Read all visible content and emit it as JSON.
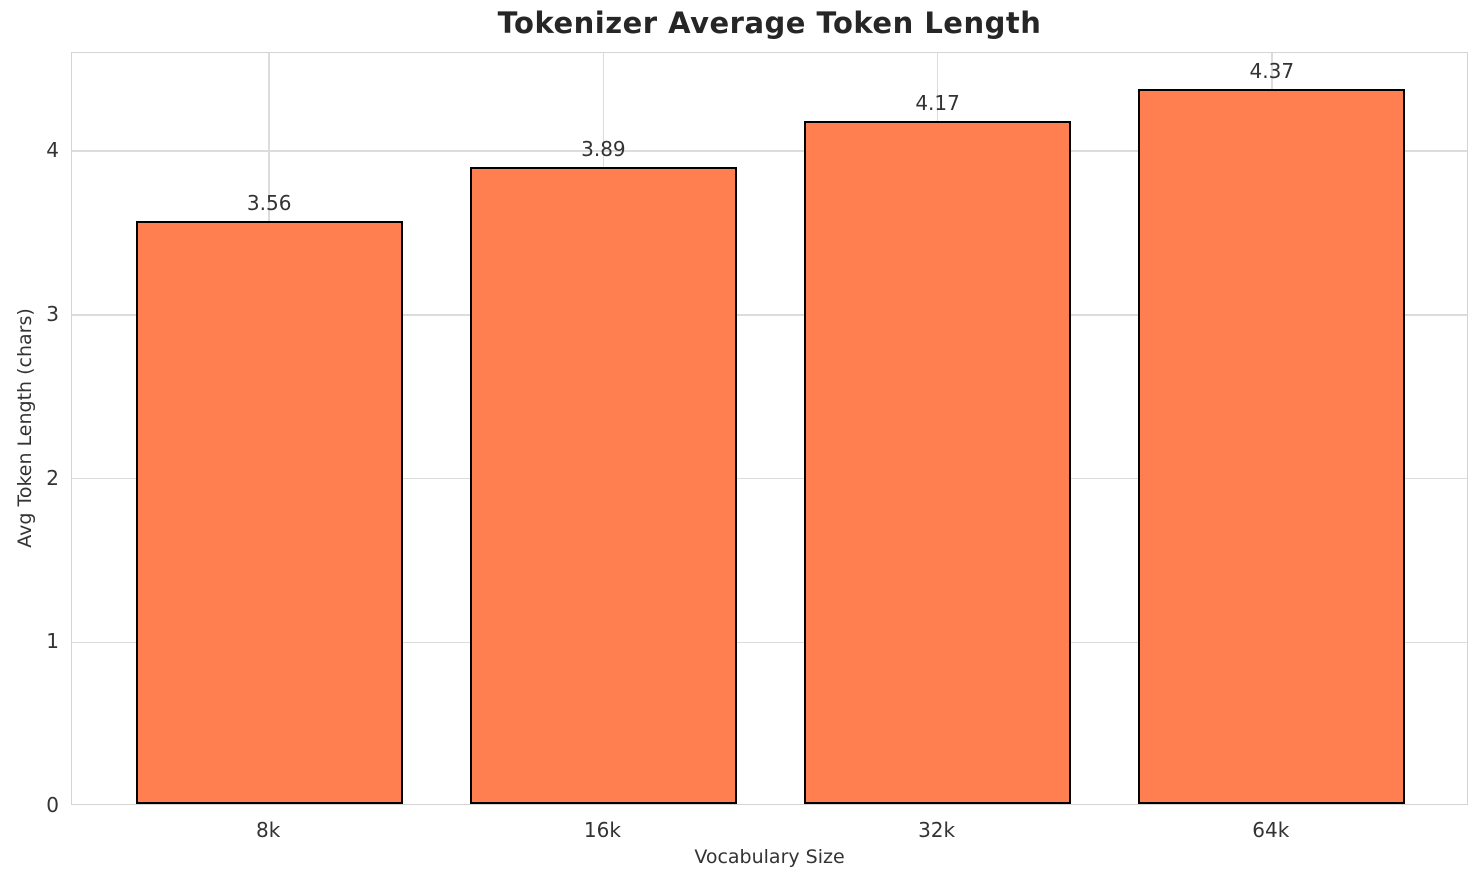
{
  "chart_data": {
    "type": "bar",
    "title": "Tokenizer Average Token Length",
    "xlabel": "Vocabulary Size",
    "ylabel": "Avg Token Length (chars)",
    "categories": [
      "8k",
      "16k",
      "32k",
      "64k"
    ],
    "values": [
      3.56,
      3.89,
      4.17,
      4.37
    ],
    "value_labels": [
      "3.56",
      "3.89",
      "4.17",
      "4.37"
    ],
    "ylim": [
      0,
      4.6
    ],
    "yticks": [
      0,
      1,
      2,
      3,
      4
    ],
    "ytick_labels": [
      "0",
      "1",
      "2",
      "3",
      "4"
    ],
    "grid": true,
    "grid_axes": "both",
    "legend": "none",
    "bar_width_fraction": 0.8,
    "x_edge_pad_units": 0.59,
    "colors": {
      "bar_fill": "#ff7f50",
      "bar_edge": "#000000",
      "grid": "#dcdcdc",
      "spine": "#d4d4d4",
      "tick_text": "#333333",
      "title_text": "#262626",
      "background": "#ffffff"
    }
  }
}
